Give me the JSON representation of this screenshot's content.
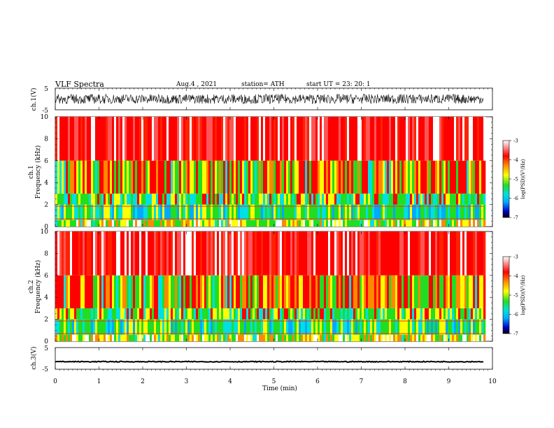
{
  "header": {
    "title": "VLF  Spectra",
    "date": "Aug.4  , 2021",
    "station": "station= ATH",
    "start": "start  UT  =    23: 20: 1"
  },
  "chart_data": [
    {
      "type": "line",
      "panel": "ch1-waveform",
      "ylabel": "ch.1(V)",
      "ylim": [
        -5,
        5
      ],
      "yticks": [
        5,
        -5
      ],
      "x_range_min": [
        0,
        9.8
      ],
      "description_values": "dense noisy waveform, amplitude approx +/-2 V"
    },
    {
      "type": "heatmap",
      "panel": "ch1-spectrogram",
      "ylabel_line1": "ch.1",
      "ylabel_line2": "Frequency  (kHz)",
      "ylim": [
        0,
        10
      ],
      "yticks": [
        0,
        2,
        4,
        6,
        8,
        10
      ],
      "x_range_min": [
        0,
        9.8
      ],
      "colorbar": {
        "label": "log(PSD)(V²/Hz)",
        "range": [
          -7,
          -3
        ],
        "ticks": [
          -3,
          -4,
          -5,
          -6,
          -7
        ],
        "colors": [
          "#000000",
          "#0000cc",
          "#00aaff",
          "#00e0e0",
          "#22dd22",
          "#ffff00",
          "#ff8800",
          "#ff0000",
          "#ffffff"
        ]
      }
    },
    {
      "type": "heatmap",
      "panel": "ch2-spectrogram",
      "ylabel_line1": "ch.2",
      "ylabel_line2": "Frequency  (kHz)",
      "ylim": [
        0,
        10
      ],
      "yticks": [
        0,
        2,
        4,
        6,
        8,
        10
      ],
      "x_range_min": [
        0,
        9.8
      ],
      "colorbar": {
        "label": "log(PSD)(V²/Hz)",
        "range": [
          -7,
          -3
        ],
        "ticks": [
          -3,
          -4,
          -5,
          -6,
          -7
        ],
        "colors": [
          "#000000",
          "#0000cc",
          "#00aaff",
          "#00e0e0",
          "#22dd22",
          "#ffff00",
          "#ff8800",
          "#ff0000",
          "#ffffff"
        ]
      }
    },
    {
      "type": "line",
      "panel": "ch3-waveform",
      "ylabel": "ch.3(V)",
      "ylim": [
        -5,
        5
      ],
      "yticks": [
        5,
        -5
      ],
      "x_range_min": [
        0,
        9.8
      ],
      "description_values": "thin flat waveform near -1.5 V"
    }
  ],
  "xaxis": {
    "label": "Time  (min)",
    "ticks": [
      0,
      1,
      2,
      3,
      4,
      5,
      6,
      7,
      8,
      9,
      10
    ],
    "range": [
      0,
      10
    ]
  }
}
